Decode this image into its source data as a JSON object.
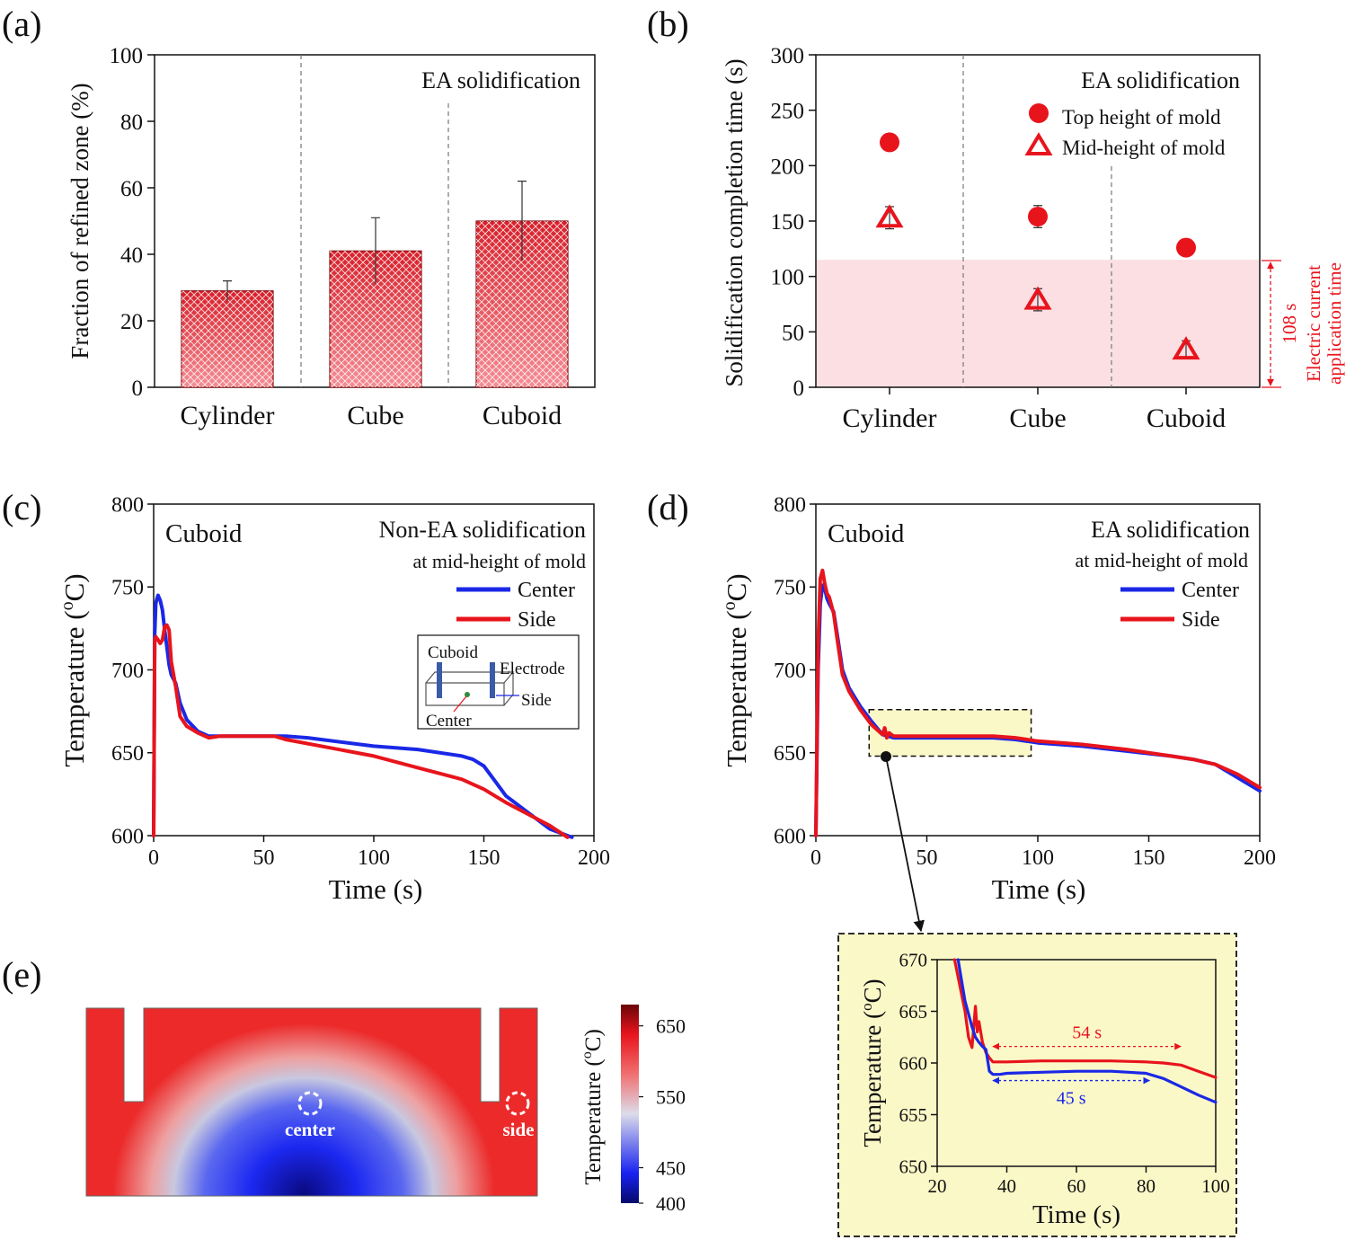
{
  "colors": {
    "red": "#e8141c",
    "blue": "#1a28e6",
    "shade": "#fcdfe3",
    "zoom_bg": "#fbf8c8",
    "black": "#111111"
  },
  "chart_data": [
    {
      "id": "a",
      "panel_label": "(a)",
      "type": "bar",
      "title": "EA solidification",
      "categories": [
        "Cylinder",
        "Cube",
        "Cuboid"
      ],
      "values": [
        29,
        41,
        50
      ],
      "errors": [
        3,
        10,
        12
      ],
      "ylabel": "Fraction of refined zone (%)",
      "ylim": [
        0,
        100
      ],
      "yticks": [
        "0",
        "20",
        "40",
        "60",
        "80",
        "100"
      ]
    },
    {
      "id": "b",
      "panel_label": "(b)",
      "type": "scatter",
      "title": "EA solidification",
      "categories": [
        "Cylinder",
        "Cube",
        "Cuboid"
      ],
      "series": [
        {
          "name": "Top height of mold",
          "marker": "circle",
          "values": [
            221,
            154,
            126
          ],
          "errors": [
            6,
            10,
            6
          ]
        },
        {
          "name": "Mid-height of mold",
          "marker": "triangle",
          "values": [
            153,
            79,
            34
          ],
          "errors": [
            10,
            10,
            8
          ]
        }
      ],
      "ylabel": "Solidification completion time (s)",
      "ylim": [
        0,
        300
      ],
      "yticks": [
        "0",
        "50",
        "100",
        "150",
        "200",
        "250",
        "300"
      ],
      "shaded_limit": 115,
      "annotation": {
        "value": "108 s",
        "line1": "Electric current",
        "line2": "application time"
      }
    },
    {
      "id": "c",
      "panel_label": "(c)",
      "type": "line",
      "corner_label": "Cuboid",
      "title": "Non-EA solidification",
      "subtitle": "at mid-height of mold",
      "xlabel": "Time (s)",
      "ylabel": "Temperature (oC)",
      "xlim": [
        0,
        200
      ],
      "ylim": [
        600,
        800
      ],
      "xticks": [
        "0",
        "50",
        "100",
        "150",
        "200"
      ],
      "yticks": [
        "600",
        "650",
        "700",
        "750",
        "800"
      ],
      "series": [
        {
          "name": "Center",
          "color": "blue",
          "x": [
            0,
            0.5,
            1,
            1.5,
            2,
            3,
            4,
            5,
            6,
            7,
            8,
            10,
            12,
            15,
            20,
            25,
            30,
            60,
            70,
            100,
            120,
            140,
            145,
            150,
            155,
            160,
            170,
            180,
            190
          ],
          "y": [
            600,
            722,
            740,
            743,
            745,
            742,
            736,
            724,
            714,
            703,
            697,
            692,
            680,
            670,
            663,
            660,
            660,
            660,
            659,
            654,
            652,
            648,
            646,
            642,
            633,
            624,
            614,
            604,
            599
          ]
        },
        {
          "name": "Side",
          "color": "red",
          "x": [
            0,
            0.5,
            1,
            2,
            3,
            4,
            5,
            6,
            7,
            8,
            10,
            12,
            15,
            20,
            25,
            30,
            55,
            60,
            80,
            100,
            120,
            140,
            150,
            160,
            170,
            180,
            188
          ],
          "y": [
            600,
            718,
            720,
            718,
            716,
            718,
            726,
            727,
            724,
            705,
            690,
            672,
            666,
            662,
            659,
            660,
            660,
            658,
            653,
            648,
            641,
            634,
            628,
            620,
            613,
            606,
            599
          ]
        }
      ],
      "inset": {
        "labels": [
          "Cuboid",
          "Electrode",
          "Side",
          "Center"
        ]
      }
    },
    {
      "id": "d",
      "panel_label": "(d)",
      "type": "line",
      "corner_label": "Cuboid",
      "title": "EA solidification",
      "subtitle": "at mid-height of mold",
      "xlabel": "Time (s)",
      "ylabel": "Temperature (oC)",
      "xlim": [
        0,
        200
      ],
      "ylim": [
        600,
        800
      ],
      "xticks": [
        "0",
        "50",
        "100",
        "150",
        "200"
      ],
      "yticks": [
        "600",
        "650",
        "700",
        "750",
        "800"
      ],
      "highlight_box": {
        "x": [
          24,
          97
        ],
        "y": [
          648,
          676
        ]
      },
      "series": [
        {
          "name": "Center",
          "color": "blue",
          "x": [
            0,
            1,
            2,
            3,
            4,
            5,
            6,
            8,
            10,
            12,
            15,
            20,
            25,
            30,
            35,
            40,
            60,
            80,
            90,
            100,
            120,
            140,
            160,
            170,
            180,
            190,
            200
          ],
          "y": [
            600,
            700,
            740,
            751,
            749,
            743,
            740,
            735,
            718,
            700,
            689,
            678,
            669,
            661,
            659,
            659,
            659,
            659,
            658,
            656,
            654,
            651,
            648,
            646,
            643,
            635,
            627
          ]
        },
        {
          "name": "Side",
          "color": "red",
          "x": [
            0,
            1,
            2,
            3,
            4,
            5,
            6,
            8,
            10,
            12,
            15,
            20,
            25,
            30,
            31,
            32,
            33,
            35,
            40,
            60,
            80,
            90,
            100,
            120,
            140,
            160,
            170,
            180,
            190,
            200
          ],
          "y": [
            600,
            715,
            755,
            760,
            752,
            746,
            744,
            734,
            715,
            697,
            687,
            676,
            667,
            661,
            665,
            659,
            662,
            660,
            660,
            660,
            660,
            659,
            657,
            655,
            652,
            648,
            646,
            643,
            637,
            629
          ]
        }
      ]
    },
    {
      "id": "zoom",
      "type": "line",
      "xlabel": "Time (s)",
      "ylabel": "Temperature (oC)",
      "xlim": [
        20,
        100
      ],
      "ylim": [
        650,
        670
      ],
      "xticks": [
        "20",
        "40",
        "60",
        "80",
        "100"
      ],
      "yticks": [
        "650",
        "655",
        "660",
        "665",
        "670"
      ],
      "series": [
        {
          "name": "Side",
          "color": "red",
          "x": [
            25,
            28,
            29,
            30,
            31,
            31.5,
            32,
            33,
            34,
            35,
            36,
            40,
            50,
            60,
            70,
            80,
            85,
            90,
            95,
            100
          ],
          "y": [
            670,
            665,
            662.5,
            661.5,
            665.5,
            663,
            664,
            662,
            661,
            660.5,
            660.1,
            660.1,
            660.2,
            660.2,
            660.2,
            660.1,
            660.0,
            659.8,
            659.2,
            658.6
          ]
        },
        {
          "name": "Center",
          "color": "blue",
          "x": [
            26,
            28,
            30,
            31,
            32,
            33,
            34,
            35,
            36,
            38,
            40,
            50,
            60,
            70,
            75,
            80,
            85,
            90,
            95,
            100
          ],
          "y": [
            670,
            666,
            663.5,
            662.5,
            662,
            661.6,
            661.3,
            659.2,
            658.9,
            658.9,
            659.0,
            659.1,
            659.2,
            659.2,
            659.1,
            659.0,
            658.5,
            657.7,
            656.9,
            656.2
          ]
        }
      ],
      "annotations": [
        {
          "label": "54 s",
          "color": "red",
          "x": [
            36,
            90
          ],
          "y": 661.6
        },
        {
          "label": "45 s",
          "color": "blue",
          "x": [
            36,
            81
          ],
          "y": 658.3
        }
      ]
    },
    {
      "id": "e",
      "panel_label": "(e)",
      "type": "heatmap",
      "colorbar_label": "Temperature (oC)",
      "colorbar_range": [
        400,
        680
      ],
      "colorbar_ticks": [
        "400",
        "450",
        "550",
        "650"
      ],
      "markers": [
        "center",
        "side"
      ]
    }
  ]
}
